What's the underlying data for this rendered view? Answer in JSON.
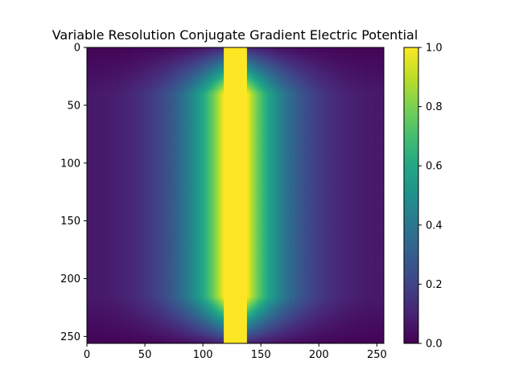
{
  "chart_data": {
    "type": "heatmap",
    "title": "Variable Resolution Conjugate Gradient Electric Potential",
    "xlabel": "",
    "ylabel": "",
    "xlim": [
      0,
      256
    ],
    "ylim": [
      256,
      0
    ],
    "x_ticks": [
      0,
      50,
      100,
      150,
      200,
      250
    ],
    "y_ticks": [
      0,
      50,
      100,
      150,
      200,
      250
    ],
    "x_tick_labels": [
      "0",
      "50",
      "100",
      "150",
      "200",
      "250"
    ],
    "y_tick_labels": [
      "0",
      "50",
      "100",
      "150",
      "200",
      "250"
    ],
    "colormap": "viridis",
    "colorbar": {
      "range": [
        0.0,
        1.0
      ],
      "ticks": [
        0.0,
        0.2,
        0.4,
        0.6,
        0.8,
        1.0
      ],
      "tick_labels": [
        "0.0",
        "0.2",
        "0.4",
        "0.6",
        "0.8",
        "1.0"
      ]
    },
    "conductor_band": {
      "x_range": [
        118,
        138
      ],
      "value": 1.0
    },
    "grid": false,
    "legend": "none"
  }
}
